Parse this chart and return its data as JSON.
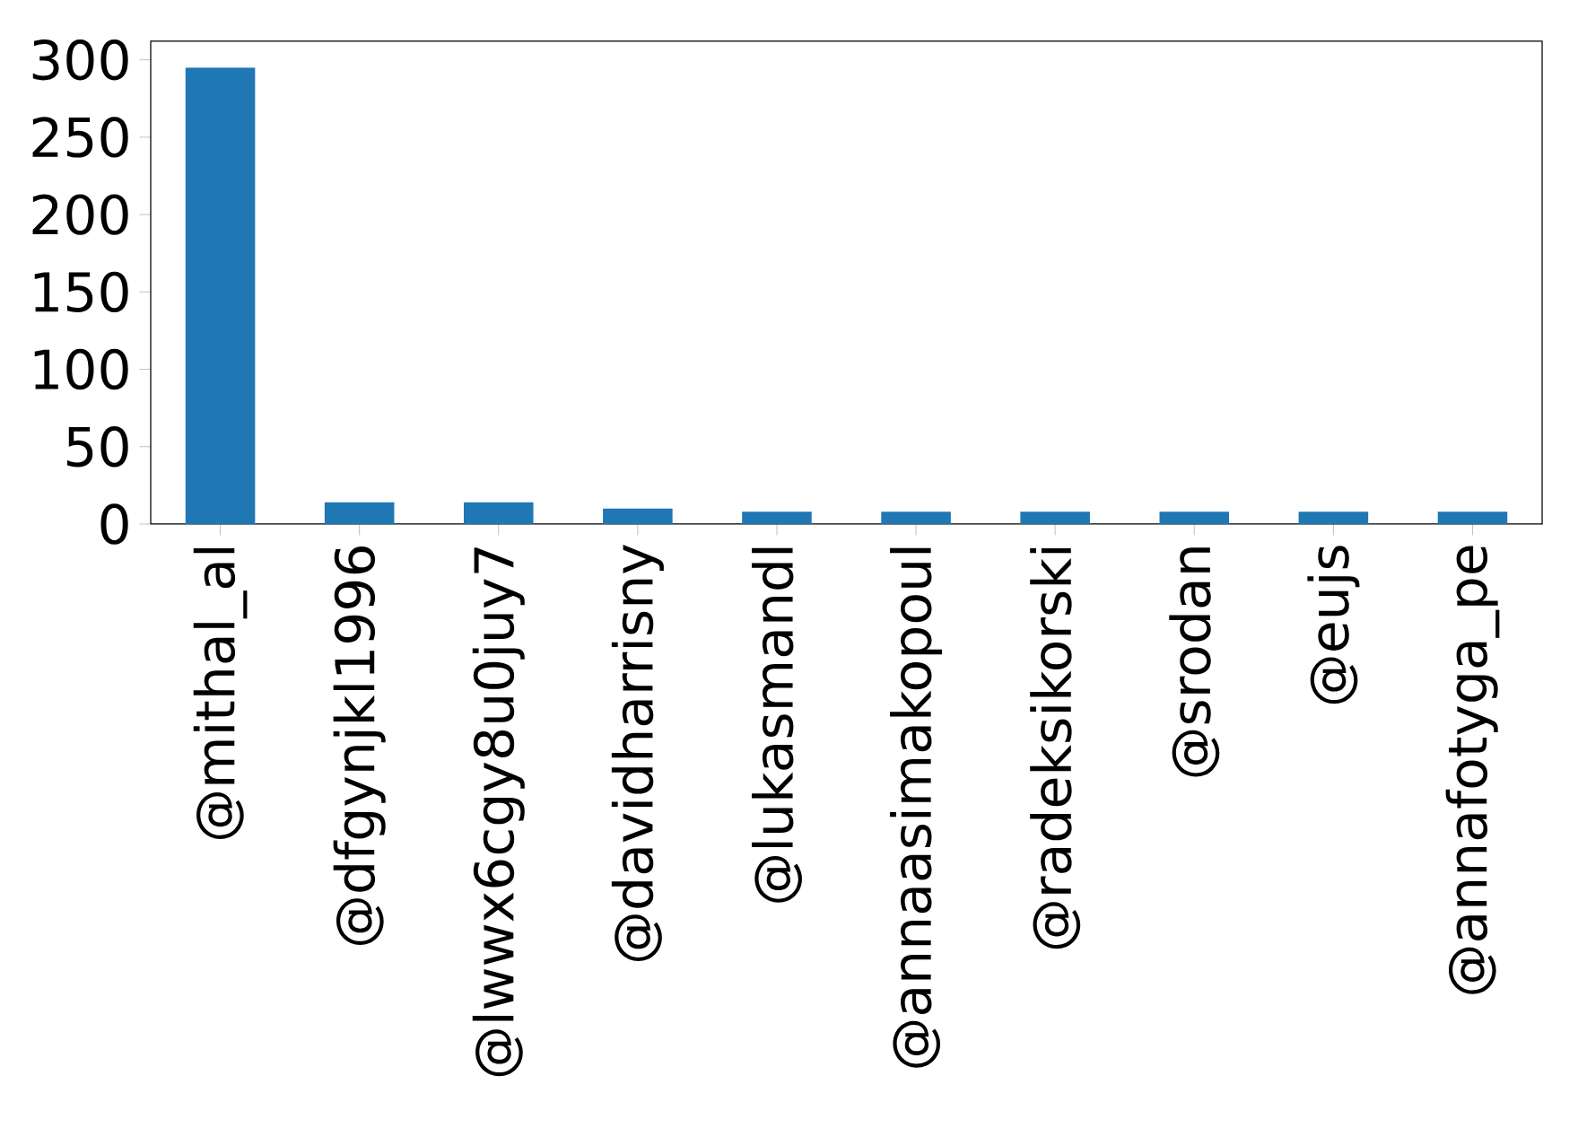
{
  "chart_data": {
    "type": "bar",
    "categories": [
      "@mithal_al",
      "@dfgynjkl1996",
      "@lwwx6cgy8u0juy7",
      "@davidharrisny",
      "@lukasmandl",
      "@annaasimakopoul",
      "@radeksikorski",
      "@srodan",
      "@eujs",
      "@annafotyga_pe"
    ],
    "values": [
      295,
      14,
      14,
      10,
      8,
      8,
      8,
      8,
      8,
      8
    ],
    "color": "#1f77b4",
    "ylim": [
      0,
      312
    ],
    "yticks": [
      0,
      50,
      100,
      150,
      200,
      250,
      300
    ]
  }
}
